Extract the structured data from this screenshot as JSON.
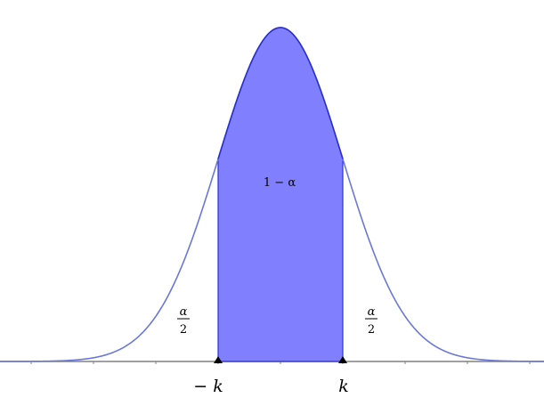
{
  "diagram": {
    "type": "normal-distribution-confidence-interval",
    "mean": 0,
    "sd": 1,
    "k": 1,
    "x_range": [
      -4.5,
      4.2
    ],
    "tick_step": 1,
    "labels": {
      "center_area": "1 − α",
      "tail_numerator": "α",
      "tail_denominator": "2",
      "left_bound": "− k",
      "right_bound": "k"
    },
    "colors": {
      "fill": "#8080ff",
      "curve": "#6a78d8",
      "curve_dark": "#2a30d0",
      "axis": "#808080",
      "marker": "#000000"
    }
  }
}
